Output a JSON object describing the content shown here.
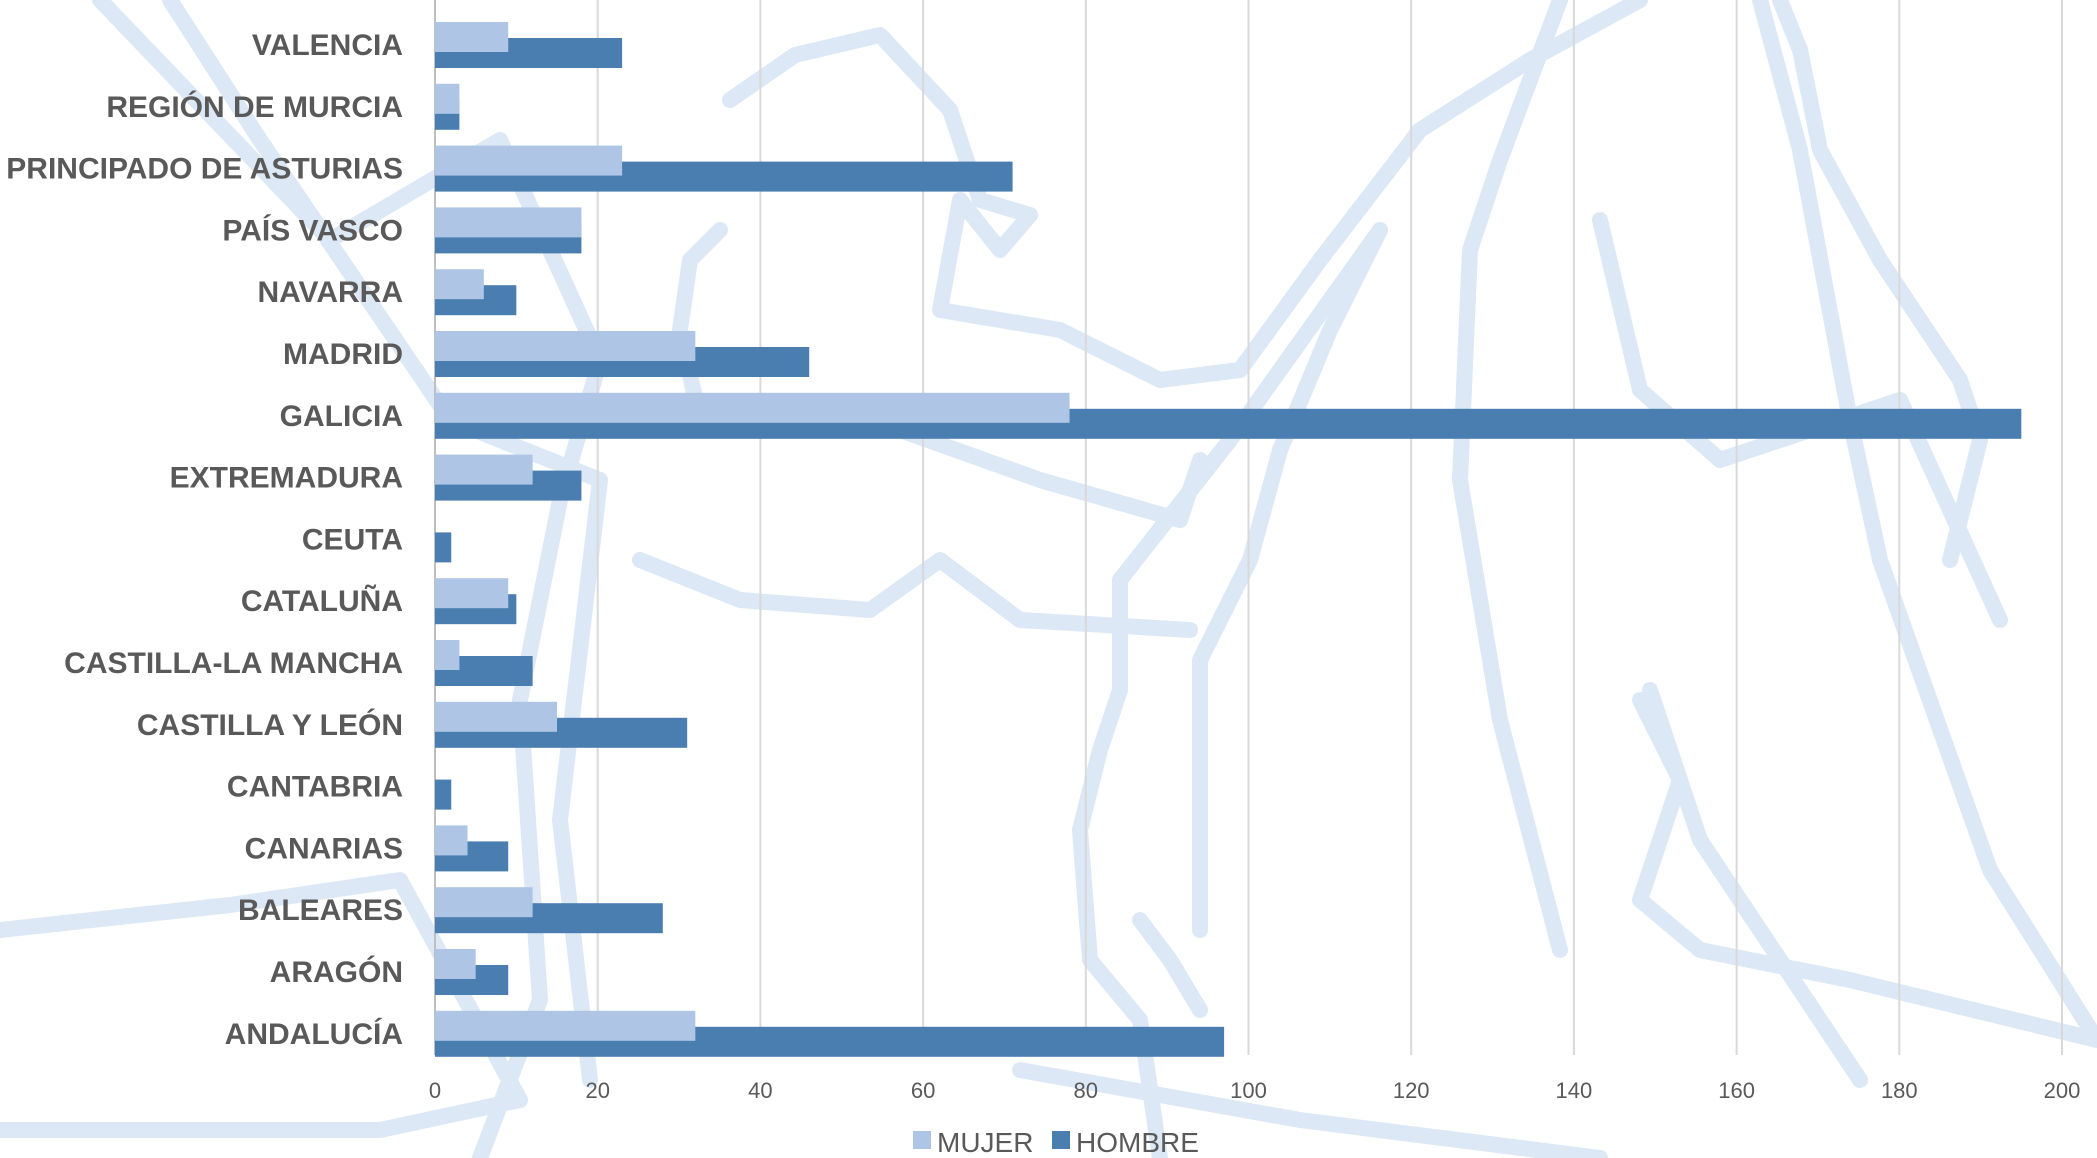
{
  "chart_data": {
    "type": "bar",
    "orientation": "horizontal",
    "categories": [
      "VALENCIA",
      "REGIÓN DE MURCIA",
      "PRINCIPADO DE ASTURIAS",
      "PAÍS VASCO",
      "NAVARRA",
      "MADRID",
      "GALICIA",
      "EXTREMADURA",
      "CEUTA",
      "CATALUÑA",
      "CASTILLA-LA MANCHA",
      "CASTILLA Y LEÓN",
      "CANTABRIA",
      "CANARIAS",
      "BALEARES",
      "ARAGÓN",
      "ANDALUCÍA"
    ],
    "series": [
      {
        "name": "MUJER",
        "color": "#aec5e6",
        "values": [
          9,
          3,
          23,
          18,
          6,
          32,
          78,
          12,
          0,
          9,
          3,
          15,
          0,
          4,
          12,
          5,
          32
        ]
      },
      {
        "name": "HOMBRE",
        "color": "#4a7eb0",
        "values": [
          23,
          3,
          71,
          18,
          10,
          46,
          195,
          18,
          2,
          10,
          12,
          31,
          2,
          9,
          28,
          9,
          97
        ]
      }
    ],
    "xlim": [
      0,
      200
    ],
    "xticks": [
      0,
      20,
      40,
      60,
      80,
      100,
      120,
      140,
      160,
      180,
      200
    ],
    "grid": true,
    "legend_position": "bottom",
    "title": "",
    "xlabel": "",
    "ylabel": ""
  },
  "colors": {
    "gridline": "#d9d9d9",
    "label_text": "#595959",
    "background_map": "#dce8f5"
  }
}
